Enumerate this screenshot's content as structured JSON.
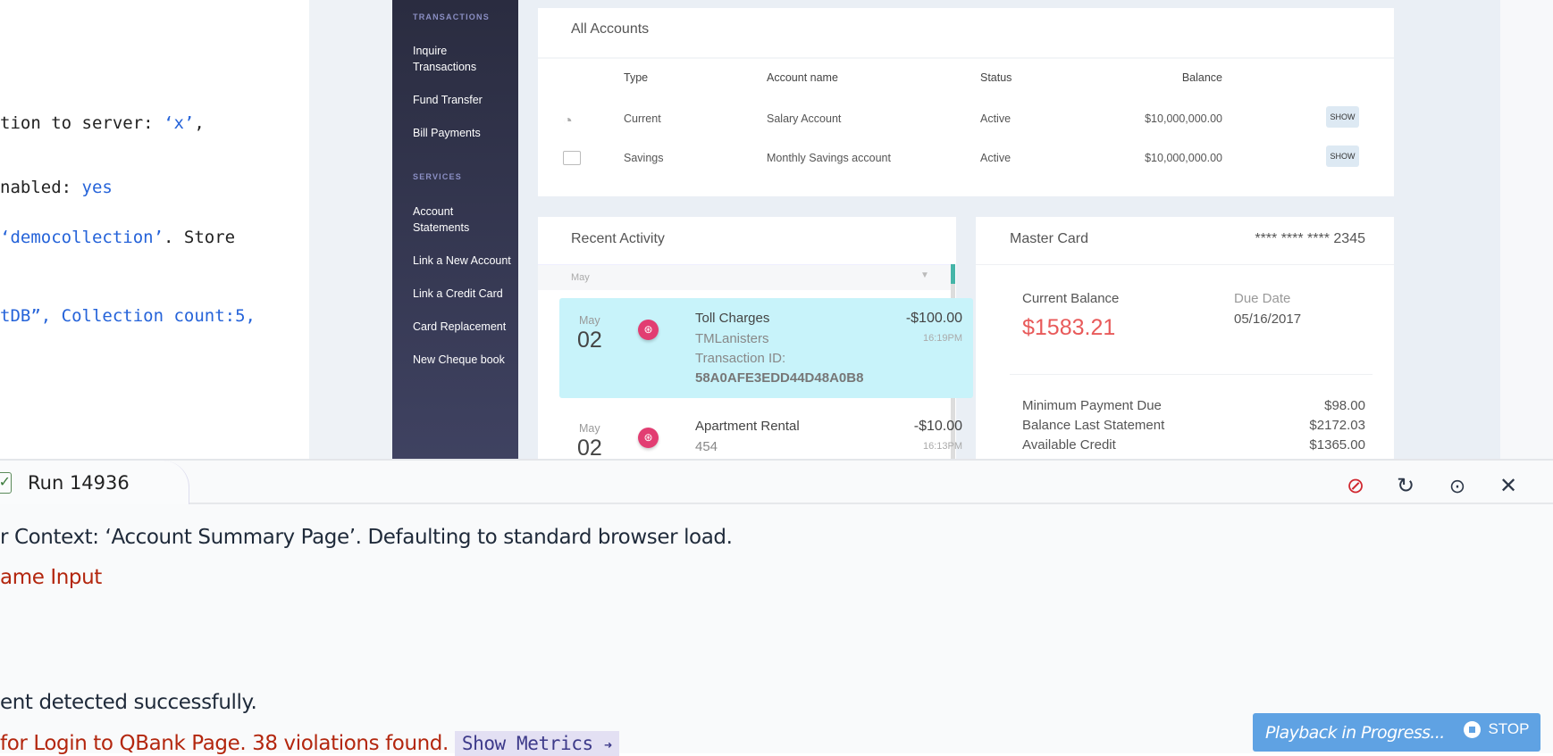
{
  "code_panel": {
    "lines": [
      {
        "plain": "tion to server: ",
        "blue": "‘x’",
        "tail": ","
      },
      {
        "plain": "nabled: ",
        "blue": "yes",
        "tail": ""
      },
      {
        "plain": "",
        "blue": "‘democollection’",
        "tail": ". Store"
      },
      {
        "plain": "",
        "blue": "tDB”, Collection count:5,",
        "tail": ""
      }
    ]
  },
  "sidebar": {
    "transactions_heading": "TRANSACTIONS",
    "services_heading": "SERVICES",
    "transactions": [
      "Inquire Transactions",
      "Fund Transfer",
      "Bill Payments"
    ],
    "services": [
      "Account Statements",
      "Link a New Account",
      "Link a Credit Card",
      "Card Replacement",
      "New Cheque book"
    ]
  },
  "accounts": {
    "title": "All Accounts",
    "columns": [
      "Type",
      "Account name",
      "Status",
      "Balance"
    ],
    "rows": [
      {
        "icon": "piggy-bank-icon",
        "type": "Current",
        "name": "Salary Account",
        "status": "Active",
        "balance": "$10,000,000.00",
        "action": "SHOW"
      },
      {
        "icon": "cheque-icon",
        "type": "Savings",
        "name": "Monthly Savings account",
        "status": "Active",
        "balance": "$10,000,000.00",
        "action": "SHOW"
      }
    ]
  },
  "recent": {
    "title": "Recent Activity",
    "month_filter": "May",
    "items": [
      {
        "month": "May",
        "day": "02",
        "title": "Toll Charges",
        "sub": "TMLanisters",
        "extra_label": "Transaction ID:",
        "extra_value": "58A0AFE3EDD44D48A0B8",
        "amount": "-$100.00",
        "time": "16:19PM",
        "highlight": true
      },
      {
        "month": "May",
        "day": "02",
        "title": "Apartment Rental",
        "sub": "454",
        "amount": "-$10.00",
        "time": "16:13PM",
        "highlight": false
      }
    ]
  },
  "card": {
    "title": "Master Card",
    "number": "**** **** **** 2345",
    "current_balance_label": "Current Balance",
    "current_balance": "$1583.21",
    "due_label": "Due Date",
    "due_date": "05/16/2017",
    "rows": [
      {
        "label": "Minimum Payment Due",
        "value": "$98.00"
      },
      {
        "label": "Balance Last Statement",
        "value": "$2172.03"
      },
      {
        "label": "Available Credit",
        "value": "$1365.00"
      }
    ]
  },
  "run": {
    "tab_label": "Run 14936",
    "log": [
      {
        "text": "r Context: ‘Account Summary Page’. Defaulting to standard browser load.",
        "color": "#1f2a3a"
      },
      {
        "text": "ame Input",
        "color": "#b3260e"
      },
      {
        "text": "ent detected successfully.",
        "color": "#1f2a3a"
      },
      {
        "text": "for Login to QBank Page. 38 violations found.",
        "color": "#b3260e"
      }
    ],
    "show_metrics": "Show Metrics",
    "playback_text": "Playback in Progress...",
    "stop_label": "STOP"
  },
  "colors": {
    "sidebar": "#2f3147",
    "accent_red": "#e85a5a",
    "highlight": "#c8f3fa",
    "playback": "#5fa2e3",
    "pink": "#e23d72"
  }
}
